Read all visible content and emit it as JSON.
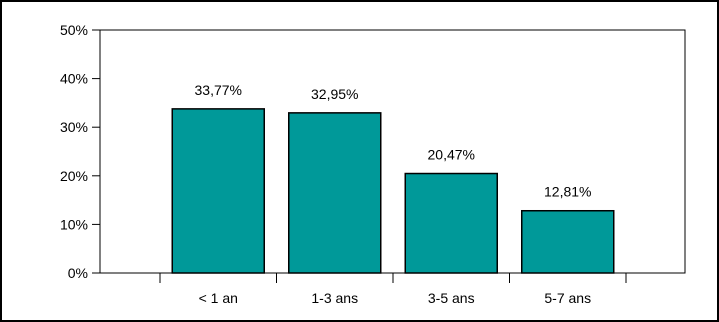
{
  "chart_data": {
    "type": "bar",
    "categories": [
      "< 1 an",
      "1-3 ans",
      "3-5 ans",
      "5-7 ans"
    ],
    "values": [
      33.77,
      32.95,
      20.47,
      12.81
    ],
    "data_labels": [
      "33,77%",
      "32,95%",
      "20,47%",
      "12,81%"
    ],
    "ylim": [
      0,
      50
    ],
    "yticks": [
      0,
      10,
      20,
      30,
      40,
      50
    ],
    "ytick_labels": [
      "0%",
      "10%",
      "20%",
      "30%",
      "40%",
      "50%"
    ],
    "title": "",
    "xlabel": "",
    "ylabel": "",
    "grid": false,
    "legend": "none",
    "bar_color": "#009999",
    "border_color": "#000000"
  }
}
